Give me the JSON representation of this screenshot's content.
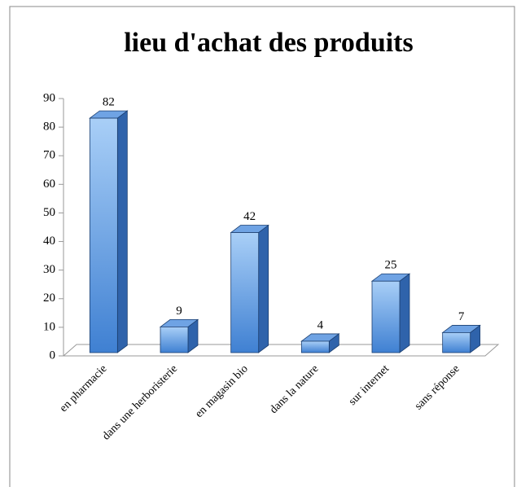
{
  "chart_data": {
    "type": "bar3d",
    "title": "lieu d'achat des produits",
    "categories": [
      "en pharmacie",
      "dans une herboristerie",
      "en magasin bio",
      "dans la nature",
      "sur internet",
      "sans réponse"
    ],
    "values": [
      82,
      9,
      42,
      4,
      25,
      7
    ],
    "color": "#4a8ad8",
    "ylim": [
      0,
      90
    ],
    "yticks": [
      0,
      10,
      20,
      30,
      40,
      50,
      60,
      70,
      80,
      90
    ],
    "grid": false
  }
}
